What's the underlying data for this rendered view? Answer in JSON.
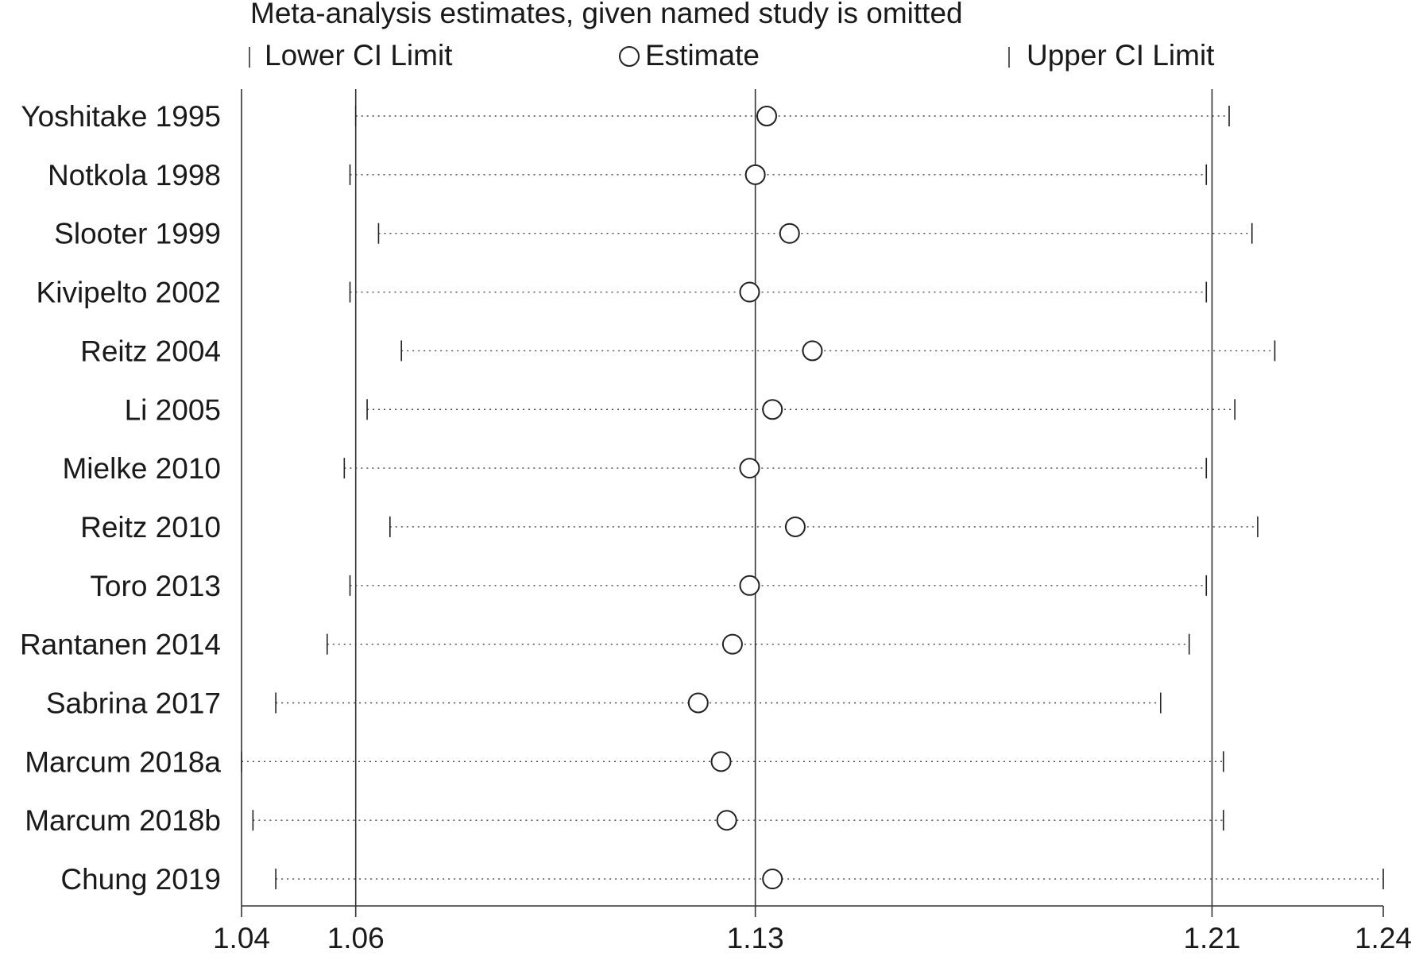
{
  "chart_data": {
    "type": "scatter",
    "title": "Meta-analysis estimates, given named study is omitted",
    "legend": {
      "position": "top",
      "lower_label": "Lower CI Limit",
      "estimate_label": "Estimate",
      "upper_label": "Upper CI Limit"
    },
    "xlim": [
      1.04,
      1.24
    ],
    "x_ticks": [
      1.04,
      1.06,
      1.13,
      1.21,
      1.24
    ],
    "x_tick_labels": [
      "1.04",
      "1.06",
      "1.13",
      "1.21",
      "1.24"
    ],
    "reference_lines": [
      1.06,
      1.13,
      1.21
    ],
    "studies": [
      {
        "label": "Yoshitake 1995",
        "lower": 1.06,
        "estimate": 1.132,
        "upper": 1.213
      },
      {
        "label": "Notkola 1998",
        "lower": 1.059,
        "estimate": 1.13,
        "upper": 1.209
      },
      {
        "label": "Slooter 1999",
        "lower": 1.064,
        "estimate": 1.136,
        "upper": 1.217
      },
      {
        "label": "Kivipelto 2002",
        "lower": 1.059,
        "estimate": 1.129,
        "upper": 1.209
      },
      {
        "label": "Reitz 2004",
        "lower": 1.068,
        "estimate": 1.14,
        "upper": 1.221
      },
      {
        "label": "Li 2005",
        "lower": 1.062,
        "estimate": 1.133,
        "upper": 1.214
      },
      {
        "label": "Mielke 2010",
        "lower": 1.058,
        "estimate": 1.129,
        "upper": 1.209
      },
      {
        "label": "Reitz 2010",
        "lower": 1.066,
        "estimate": 1.137,
        "upper": 1.218
      },
      {
        "label": "Toro 2013",
        "lower": 1.059,
        "estimate": 1.129,
        "upper": 1.209
      },
      {
        "label": "Rantanen 2014",
        "lower": 1.055,
        "estimate": 1.126,
        "upper": 1.206
      },
      {
        "label": "Sabrina 2017",
        "lower": 1.046,
        "estimate": 1.12,
        "upper": 1.201
      },
      {
        "label": "Marcum 2018a",
        "lower": 1.04,
        "estimate": 1.124,
        "upper": 1.212
      },
      {
        "label": "Marcum 2018b",
        "lower": 1.042,
        "estimate": 1.125,
        "upper": 1.212
      },
      {
        "label": "Chung 2019",
        "lower": 1.046,
        "estimate": 1.133,
        "upper": 1.24
      }
    ]
  }
}
